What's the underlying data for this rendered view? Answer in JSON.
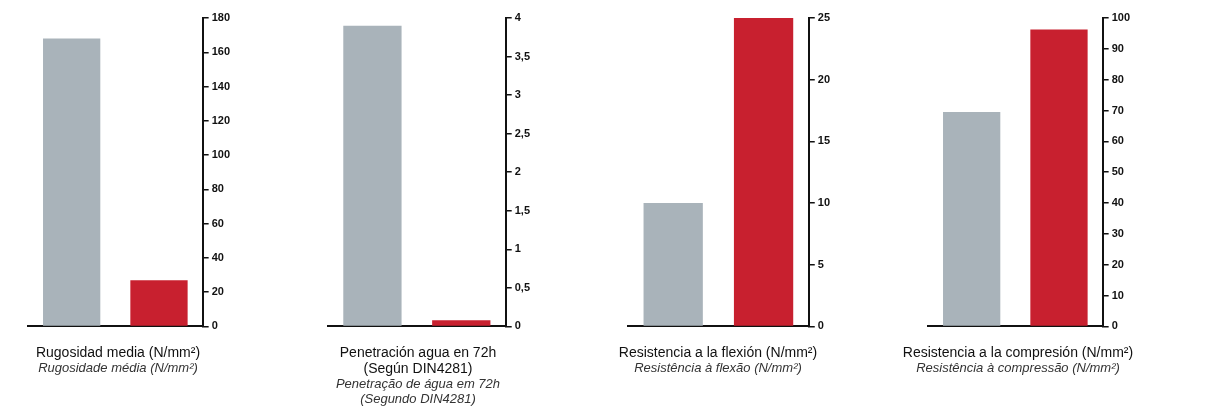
{
  "chart_data": [
    {
      "type": "bar",
      "xlabel": "Rugosidad media (N/mm²)",
      "annotations": [
        "Rugosidade média (N/mm²)"
      ],
      "categories": [
        null,
        null
      ],
      "values": [
        168,
        27
      ],
      "colors": [
        "#a9b3ba",
        "#c8202f"
      ],
      "ylim": [
        0,
        180
      ],
      "yticks": [
        0,
        20,
        40,
        60,
        80,
        100,
        120,
        140,
        160,
        180
      ],
      "tick_labels": "y"
    },
    {
      "type": "bar",
      "xlabel": "Penetración agua en 72h\n(Según DIN4281)",
      "annotations": [
        "Penetração de água em 72h\n(Segundo DIN4281)"
      ],
      "categories": [
        null,
        null
      ],
      "values": [
        3.9,
        0.08
      ],
      "colors": [
        "#a9b3ba",
        "#c8202f"
      ],
      "ylim": [
        0,
        4
      ],
      "yticks": [
        0,
        {
          "value": 0.5,
          "label": "0,5"
        },
        1,
        {
          "value": 1.5,
          "label": "1,5"
        },
        2,
        {
          "value": 2.5,
          "label": "2,5"
        },
        3,
        {
          "value": 3.5,
          "label": "3,5"
        },
        4
      ],
      "tick_labels": "y"
    },
    {
      "type": "bar",
      "xlabel": "Resistencia a la flexión (N/mm²)",
      "annotations": [
        "Resistência à flexão (N/mm²)"
      ],
      "categories": [
        null,
        null
      ],
      "values": [
        10,
        25
      ],
      "colors": [
        "#a9b3ba",
        "#c8202f"
      ],
      "ylim": [
        0,
        25
      ],
      "yticks": [
        0,
        5,
        10,
        15,
        20,
        25
      ],
      "tick_labels": "y"
    },
    {
      "type": "bar",
      "xlabel": "Resistencia a la compresión (N/mm²)",
      "annotations": [
        "Resistência à compressão (N/mm²)"
      ],
      "categories": [
        null,
        null
      ],
      "values": [
        69.5,
        96.3
      ],
      "colors": [
        "#a9b3ba",
        "#c8202f"
      ],
      "ylim": [
        0,
        100
      ],
      "yticks": [
        0,
        10,
        20,
        30,
        40,
        50,
        60,
        70,
        80,
        90,
        100
      ],
      "tick_labels": "y"
    }
  ]
}
